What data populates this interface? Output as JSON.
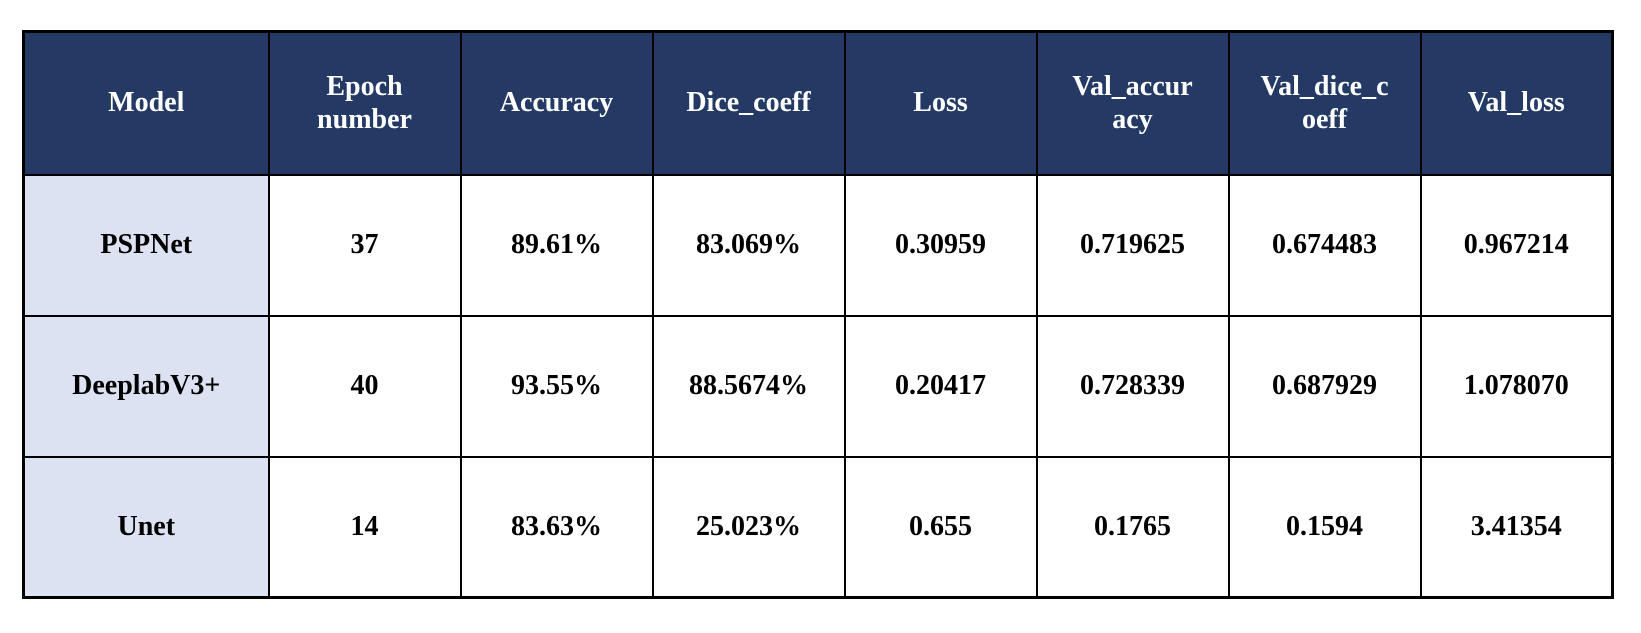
{
  "colors": {
    "header_bg": "#243a64",
    "header_text": "#ffffff",
    "row_label_bg": "#dce2f2",
    "body_text": "#000000",
    "border": "#000000",
    "page_bg": "#ffffff"
  },
  "table": {
    "headers": [
      "Model",
      "Epoch\nnumber",
      "Accuracy",
      "Dice_coeff",
      "Loss",
      "Val_accur\nacy",
      "Val_dice_c\noeff",
      "Val_loss"
    ],
    "rows": [
      {
        "model": "PSPNet",
        "values": [
          "37",
          "89.61%",
          "83.069%",
          "0.30959",
          "0.719625",
          "0.674483",
          "0.967214"
        ]
      },
      {
        "model": "DeeplabV3+",
        "values": [
          "40",
          "93.55%",
          "88.5674%",
          "0.20417",
          "0.728339",
          "0.687929",
          "1.078070"
        ]
      },
      {
        "model": "Unet",
        "values": [
          "14",
          "83.63%",
          "25.023%",
          "0.655",
          "0.1765",
          "0.1594",
          "3.41354"
        ]
      }
    ]
  },
  "chart_data": {
    "type": "table",
    "columns": [
      "Model",
      "Epoch number",
      "Accuracy",
      "Dice_coeff",
      "Loss",
      "Val_accuracy",
      "Val_dice_coeff",
      "Val_loss"
    ],
    "rows": [
      [
        "PSPNet",
        37,
        "89.61%",
        "83.069%",
        0.30959,
        0.719625,
        0.674483,
        0.967214
      ],
      [
        "DeeplabV3+",
        40,
        "93.55%",
        "88.5674%",
        0.20417,
        0.728339,
        0.687929,
        1.07807
      ],
      [
        "Unet",
        14,
        "83.63%",
        "25.023%",
        0.655,
        0.1765,
        0.1594,
        3.41354
      ]
    ]
  }
}
